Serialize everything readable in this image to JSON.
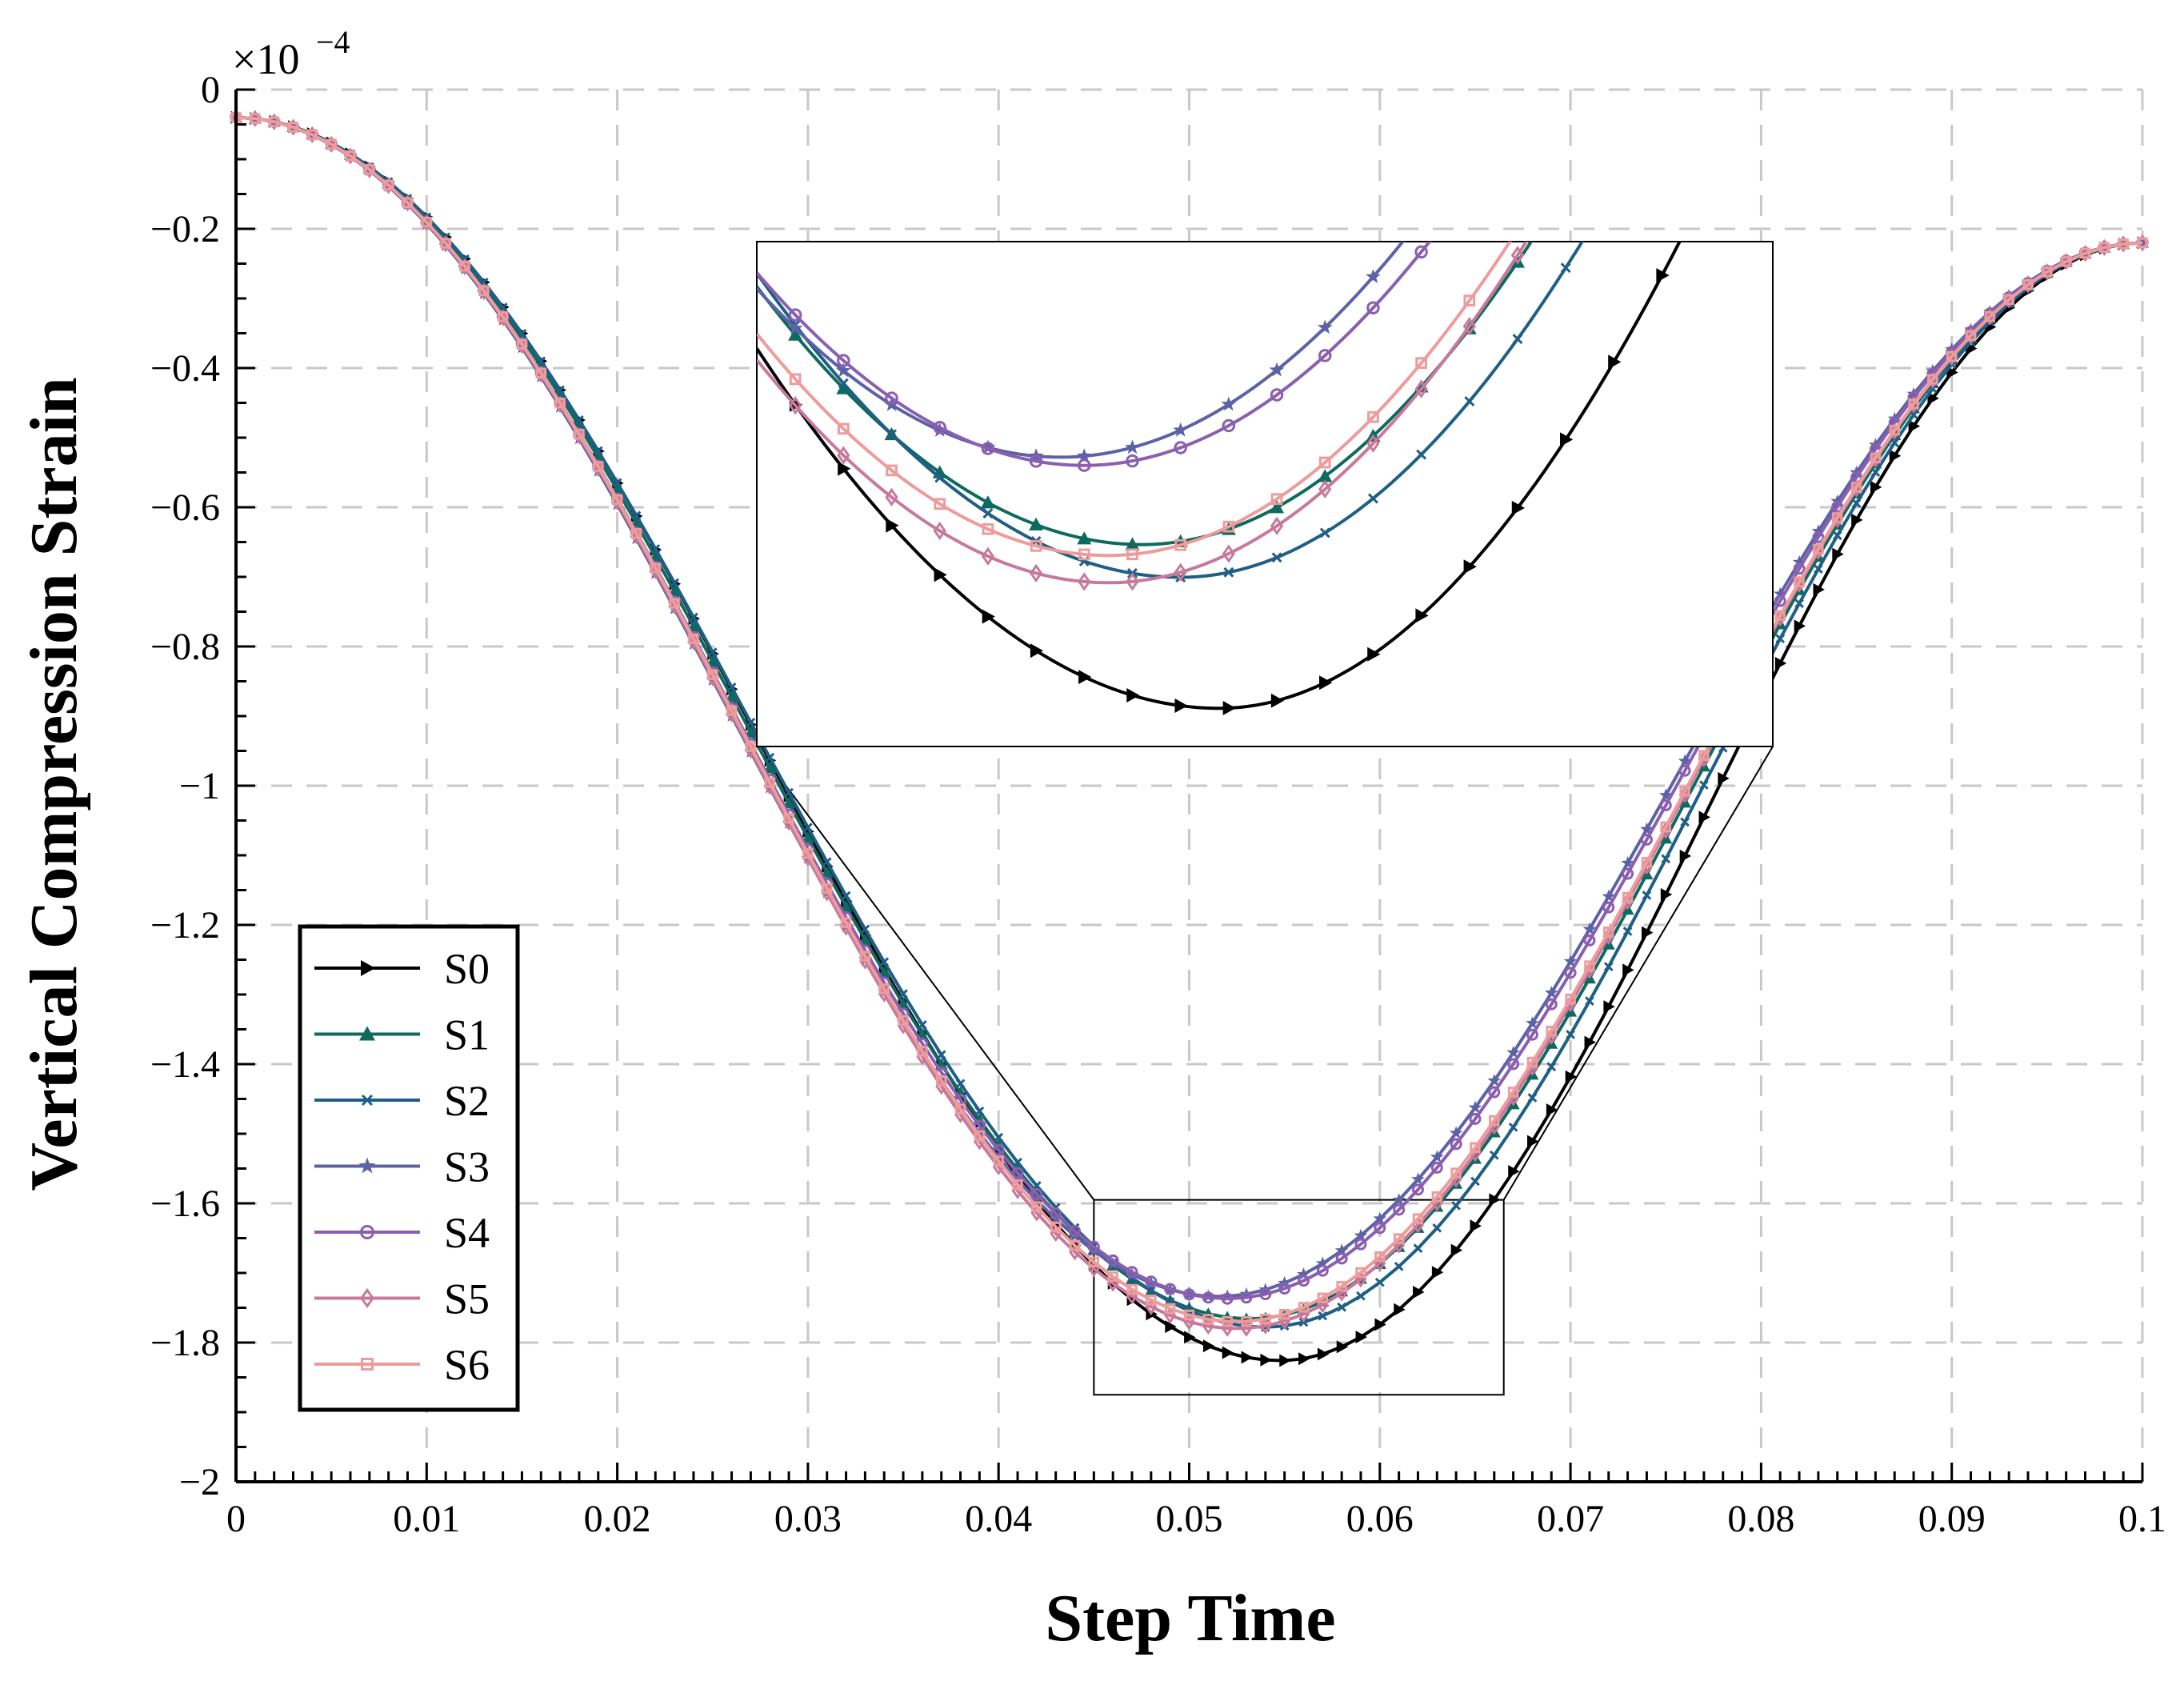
{
  "chart_data": {
    "type": "line",
    "xlabel": "Step Time",
    "ylabel": "Vertical Compression Strain",
    "y_multiplier_label": "×10",
    "y_multiplier_exponent": "−4",
    "xlim": [
      0,
      0.1
    ],
    "ylim": [
      -2,
      0
    ],
    "grid": true,
    "legend_position": "lower-left",
    "x_ticks": [
      0,
      0.01,
      0.02,
      0.03,
      0.04,
      0.05,
      0.06,
      0.07,
      0.08,
      0.09,
      0.1
    ],
    "x_tick_labels": [
      "0",
      "0.01",
      "0.02",
      "0.03",
      "0.04",
      "0.05",
      "0.06",
      "0.07",
      "0.08",
      "0.09",
      "0.1"
    ],
    "y_ticks": [
      0,
      -0.2,
      -0.4,
      -0.6,
      -0.8,
      -1,
      -1.2,
      -1.4,
      -1.6,
      -1.8,
      -2
    ],
    "y_tick_labels": [
      "0",
      "−0.2",
      "−0.4",
      "−0.6",
      "−0.8",
      "−1",
      "−1.2",
      "−1.4",
      "−1.6",
      "−1.8",
      "−2"
    ],
    "curve_model": {
      "x_start": 0,
      "x_end": 0.1,
      "n_markers": 100,
      "y_start": -0.04,
      "y_end": -0.22
    },
    "series": [
      {
        "name": "S0",
        "color": "#000000",
        "marker": "triangle-right",
        "x_min": 0.0548,
        "y_min": -1.826
      },
      {
        "name": "S1",
        "color": "#0e6a5e",
        "marker": "triangle-up",
        "x_min": 0.0532,
        "y_min": -1.766
      },
      {
        "name": "S2",
        "color": "#1f5f86",
        "marker": "x",
        "x_min": 0.054,
        "y_min": -1.778
      },
      {
        "name": "S3",
        "color": "#5c62a6",
        "marker": "star",
        "x_min": 0.0515,
        "y_min": -1.734
      },
      {
        "name": "S4",
        "color": "#8a5fb0",
        "marker": "circle",
        "x_min": 0.052,
        "y_min": -1.737
      },
      {
        "name": "S5",
        "color": "#c8799b",
        "marker": "diamond",
        "x_min": 0.0525,
        "y_min": -1.78
      },
      {
        "name": "S6",
        "color": "#ee9b9b",
        "marker": "square",
        "x_min": 0.0525,
        "y_min": -1.77
      }
    ],
    "zoom_region": {
      "x_range": [
        0.045,
        0.0665
      ],
      "y_range": [
        -1.875,
        -1.595
      ]
    }
  }
}
